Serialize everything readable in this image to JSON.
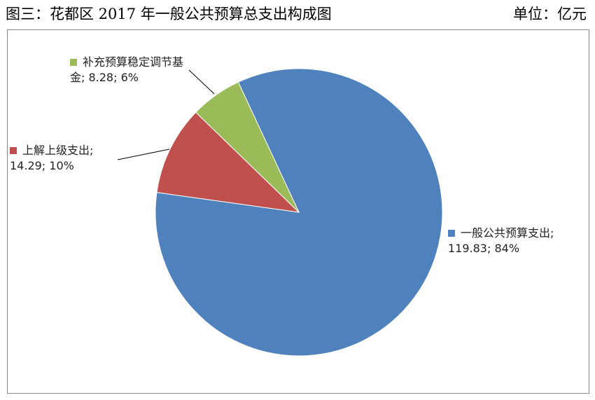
{
  "chart_data": {
    "type": "pie",
    "title": "图三：花都区 2017 年一般公共预算总支出构成图",
    "unit": "单位：亿元",
    "values": [
      119.83,
      14.29,
      8.28
    ],
    "value_labels": [
      "一般公共预算支出; 119.83; 84%",
      "上解上级支出; 14.29; 10%",
      "补充预算稳定调节基金; 8.28; 6%"
    ],
    "colors": [
      "#4f81bd",
      "#c0504d",
      "#9bbb59"
    ]
  }
}
